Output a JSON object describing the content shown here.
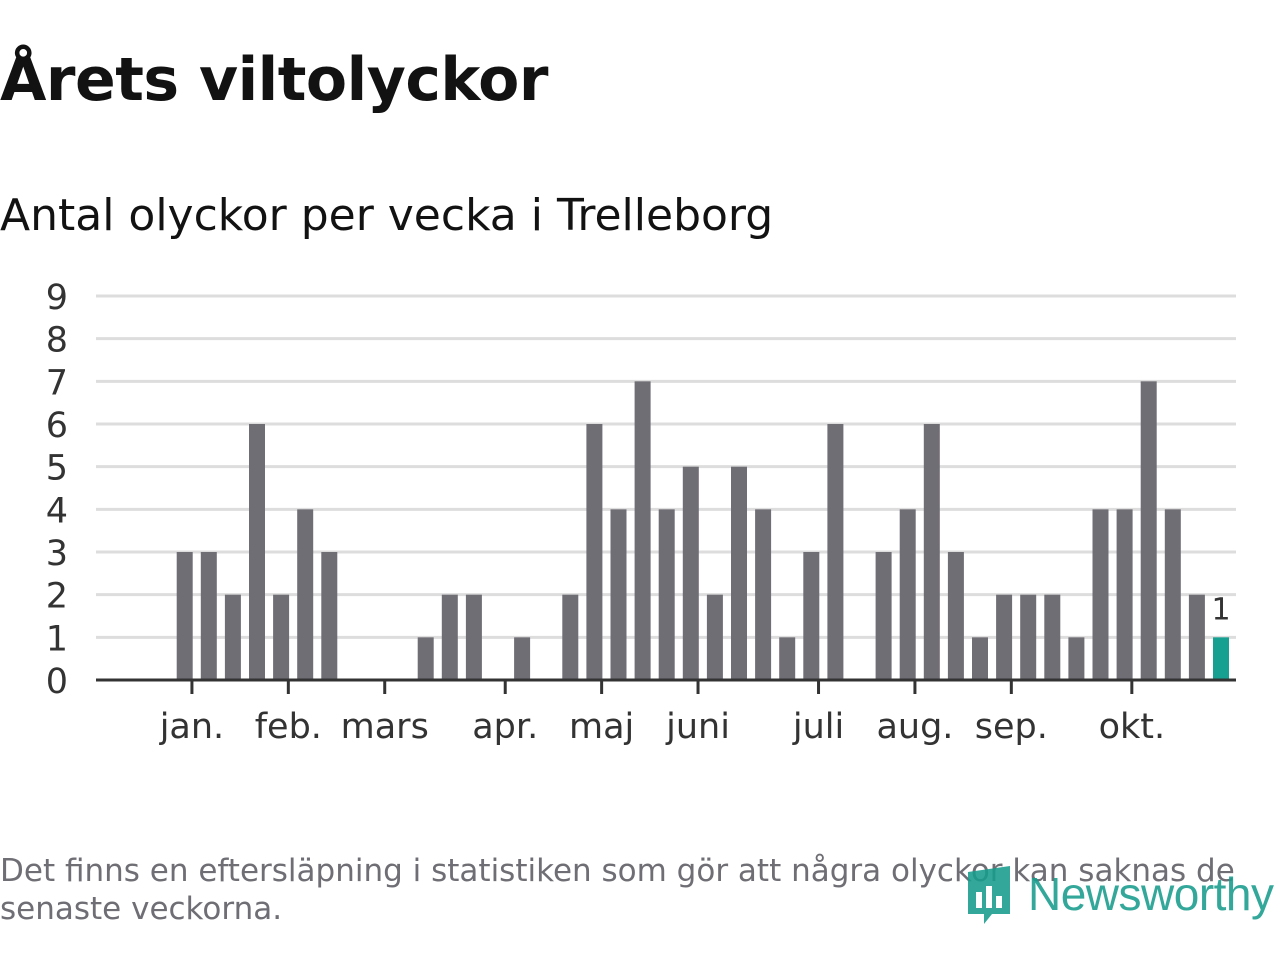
{
  "title": "Årets viltolyckor",
  "subtitle": "Antal olyckor per vecka i Trelleborg",
  "footnote": "Det finns en eftersläpning i statistiken som gör att några olyckor kan saknas de senaste veckorna.",
  "logo": {
    "text": "Newsworthy",
    "icon": "newsworthy-logo-icon"
  },
  "colors": {
    "bar": "#6f6e74",
    "highlight": "#15a091",
    "grid": "#dddddd",
    "axis": "#333333",
    "text": "#333333",
    "logo": "#179d8d"
  },
  "chart_data": {
    "type": "bar",
    "title": "Antal olyckor per vecka i Trelleborg",
    "xlabel": "",
    "ylabel": "",
    "ylim": [
      0,
      9
    ],
    "yticks": [
      0,
      1,
      2,
      3,
      4,
      5,
      6,
      7,
      8,
      9
    ],
    "grid": true,
    "weeks": [
      1,
      2,
      3,
      4,
      5,
      6,
      7,
      8,
      9,
      10,
      11,
      12,
      13,
      14,
      15,
      16,
      17,
      18,
      19,
      20,
      21,
      22,
      23,
      24,
      25,
      26,
      27,
      28,
      29,
      30,
      31,
      32,
      33,
      34,
      35,
      36,
      37,
      38,
      39,
      40,
      41,
      42,
      43,
      44,
      45,
      46,
      47
    ],
    "values": [
      0,
      0,
      3,
      3,
      2,
      6,
      2,
      4,
      3,
      0,
      0,
      0,
      1,
      2,
      2,
      0,
      1,
      0,
      2,
      6,
      4,
      7,
      4,
      5,
      2,
      5,
      4,
      1,
      3,
      6,
      0,
      3,
      4,
      6,
      3,
      1,
      2,
      2,
      2,
      1,
      4,
      4,
      7,
      4,
      2,
      1,
      0
    ],
    "highlight_index": 45,
    "highlight_label": "1",
    "month_ticks": [
      {
        "label": "jan.",
        "week": 3.3
      },
      {
        "label": "feb.",
        "week": 7.3
      },
      {
        "label": "mars",
        "week": 11.3
      },
      {
        "label": "apr.",
        "week": 16.3
      },
      {
        "label": "maj",
        "week": 20.3
      },
      {
        "label": "juni",
        "week": 24.3
      },
      {
        "label": "juli",
        "week": 29.3
      },
      {
        "label": "aug.",
        "week": 33.3
      },
      {
        "label": "sep.",
        "week": 37.3
      },
      {
        "label": "okt.",
        "week": 42.3
      }
    ]
  }
}
